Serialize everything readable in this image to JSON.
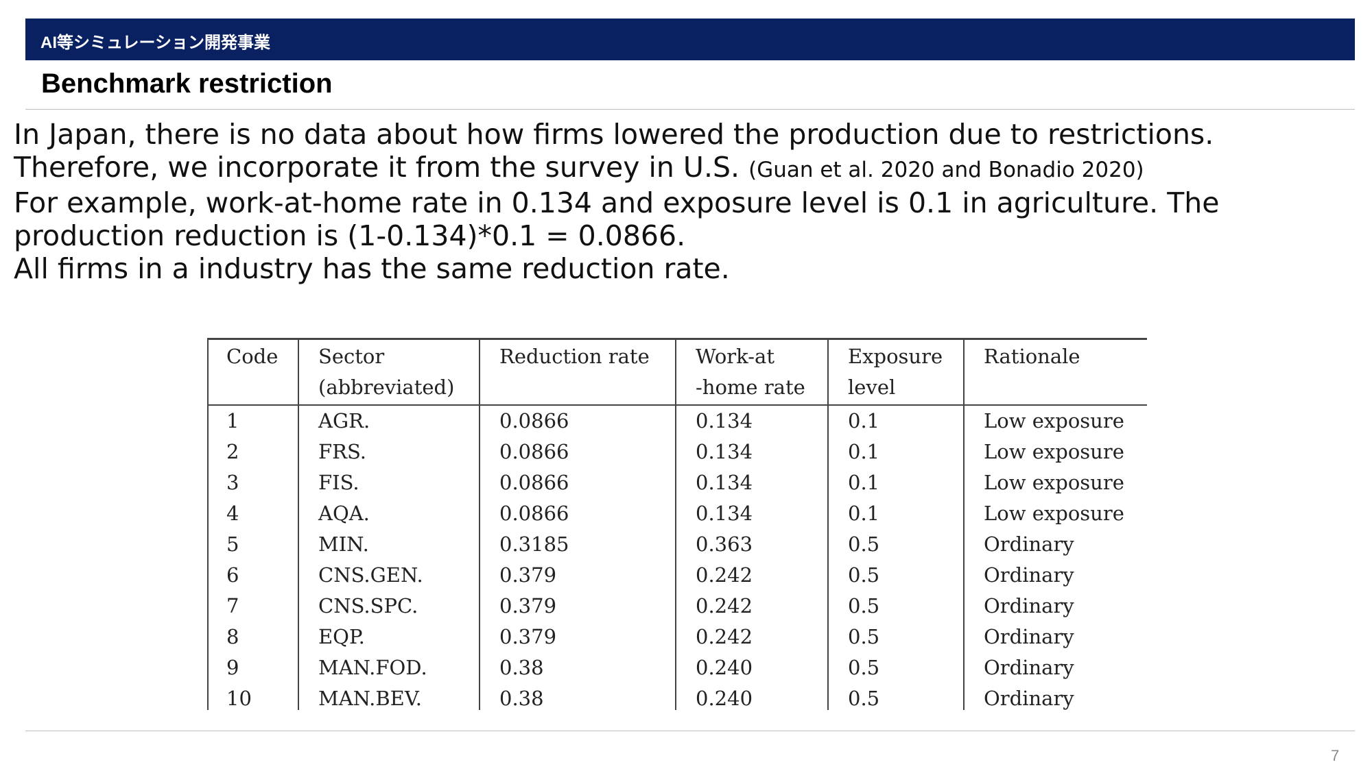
{
  "header": {
    "section_title": "AI等シミュレーション開発事業"
  },
  "slide": {
    "title": "Benchmark restriction",
    "page_number": "7"
  },
  "body": {
    "line1": "In Japan, there is no data about how firms lowered the production due to restrictions.",
    "line2": "Therefore, we incorporate it from the survey in U.S.",
    "line2_citation": "(Guan et al. 2020 and Bonadio 2020)",
    "line3": "For example, work-at-home rate in 0.134 and exposure level is 0.1 in agriculture. The",
    "line4": "production reduction is (1-0.134)*0.1 = 0.0866.",
    "line5": "All firms in a industry has the same reduction rate."
  },
  "table": {
    "headers": [
      {
        "line1": "Code",
        "line2": ""
      },
      {
        "line1": "Sector",
        "line2": "(abbreviated)"
      },
      {
        "line1": "Reduction rate",
        "line2": ""
      },
      {
        "line1": "Work-at",
        "line2": "-home rate"
      },
      {
        "line1": "Exposure",
        "line2": "level"
      },
      {
        "line1": "Rationale",
        "line2": ""
      }
    ],
    "rows": [
      [
        "1",
        "AGR.",
        "0.0866",
        "0.134",
        "0.1",
        "Low exposure"
      ],
      [
        "2",
        "FRS.",
        "0.0866",
        "0.134",
        "0.1",
        "Low exposure"
      ],
      [
        "3",
        "FIS.",
        "0.0866",
        "0.134",
        "0.1",
        "Low exposure"
      ],
      [
        "4",
        "AQA.",
        "0.0866",
        "0.134",
        "0.1",
        "Low exposure"
      ],
      [
        "5",
        "MIN.",
        "0.3185",
        "0.363",
        "0.5",
        "Ordinary"
      ],
      [
        "6",
        "CNS.GEN.",
        "0.379",
        "0.242",
        "0.5",
        "Ordinary"
      ],
      [
        "7",
        "CNS.SPC.",
        "0.379",
        "0.242",
        "0.5",
        "Ordinary"
      ],
      [
        "8",
        "EQP.",
        "0.379",
        "0.242",
        "0.5",
        "Ordinary"
      ],
      [
        "9",
        "MAN.FOD.",
        "0.38",
        "0.240",
        "0.5",
        "Ordinary"
      ],
      [
        "10",
        "MAN.BEV.",
        "0.38",
        "0.240",
        "0.5",
        "Ordinary"
      ]
    ]
  }
}
